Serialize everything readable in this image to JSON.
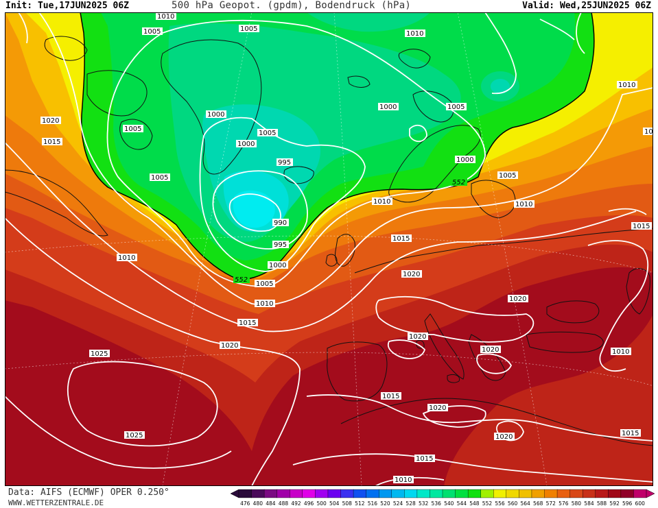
{
  "header": {
    "init": "Init: Tue,17JUN2025 06Z",
    "title": "500 hPa Geopot. (gpdm), Bodendruck (hPa)",
    "valid": "Valid: Wed,25JUN2025 06Z"
  },
  "footer": {
    "data_source": "Data: AIFS (ECMWF) OPER 0.250°",
    "website": "WWW.WETTERZENTRALE.DE"
  },
  "legend": {
    "values": [
      "476",
      "480",
      "484",
      "488",
      "492",
      "496",
      "500",
      "504",
      "508",
      "512",
      "516",
      "520",
      "524",
      "528",
      "532",
      "536",
      "540",
      "544",
      "548",
      "552",
      "556",
      "560",
      "564",
      "568",
      "572",
      "576",
      "580",
      "584",
      "588",
      "592",
      "596",
      "600"
    ],
    "colors": [
      "#2a0a3a",
      "#4a0a5a",
      "#7a0a82",
      "#a000a8",
      "#c800c8",
      "#e000e8",
      "#a000f0",
      "#6a00f0",
      "#3a30f0",
      "#1050f0",
      "#0070f0",
      "#0098f0",
      "#00b8f0",
      "#00d8f0",
      "#00e8c8",
      "#00e8a0",
      "#00e070",
      "#00e040",
      "#10e010",
      "#a0f000",
      "#f0f000",
      "#f0d800",
      "#f0c000",
      "#f0a000",
      "#f08000",
      "#e86010",
      "#d84818",
      "#c83018",
      "#b81818",
      "#a00818",
      "#900028",
      "#c0006a"
    ]
  },
  "map": {
    "isobar_labels": [
      {
        "text": "1010"
      },
      {
        "text": "1005"
      },
      {
        "text": "1005"
      },
      {
        "text": "1010"
      },
      {
        "text": "1020"
      },
      {
        "text": "1015"
      },
      {
        "text": "1005"
      },
      {
        "text": "1000"
      },
      {
        "text": "1005"
      },
      {
        "text": "1000"
      },
      {
        "text": "995"
      },
      {
        "text": "1005"
      },
      {
        "text": "990"
      },
      {
        "text": "995"
      },
      {
        "text": "1000"
      },
      {
        "text": "1005"
      },
      {
        "text": "1000"
      },
      {
        "text": "1005"
      },
      {
        "text": "1000"
      },
      {
        "text": "1005"
      },
      {
        "text": "1010"
      },
      {
        "text": "1010"
      },
      {
        "text": "1010"
      },
      {
        "text": "1015"
      },
      {
        "text": "1010"
      },
      {
        "text": "1010"
      },
      {
        "text": "1015"
      },
      {
        "text": "1020"
      },
      {
        "text": "1020"
      },
      {
        "text": "1020"
      },
      {
        "text": "1020"
      },
      {
        "text": "1020"
      },
      {
        "text": "1015"
      },
      {
        "text": "1025"
      },
      {
        "text": "1025"
      },
      {
        "text": "1015"
      },
      {
        "text": "1020"
      },
      {
        "text": "1020"
      },
      {
        "text": "1015"
      },
      {
        "text": "1015"
      },
      {
        "text": "1010"
      },
      {
        "text": "1015"
      },
      {
        "text": "1010"
      },
      {
        "text": "10"
      }
    ],
    "geopot_labels": [
      {
        "text": "552"
      },
      {
        "text": "552"
      }
    ]
  }
}
